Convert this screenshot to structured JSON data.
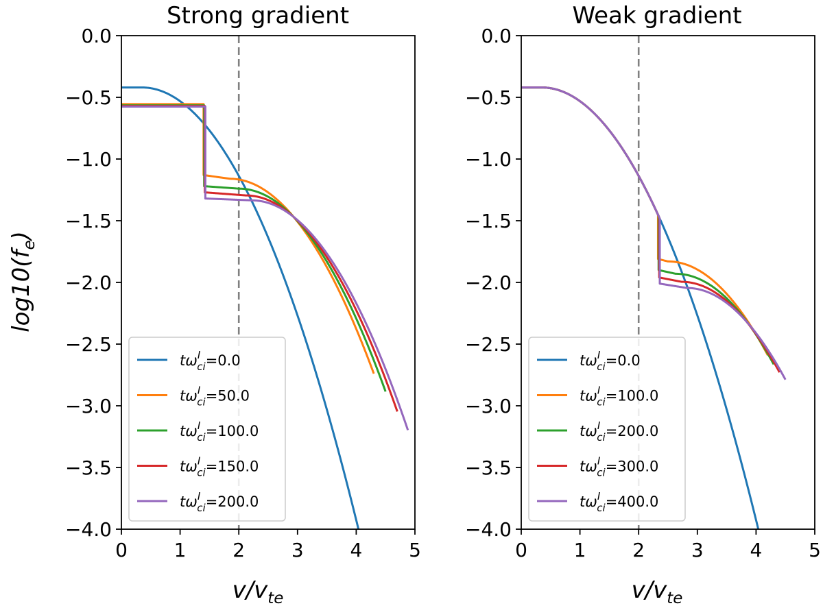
{
  "chart_data": [
    {
      "type": "line",
      "title": "Strong gradient",
      "xlabel_base": "v/v",
      "xlabel_sub": "te",
      "ylabel_text": "log10(f",
      "ylabel_sub": "e",
      "ylabel_close": ")",
      "xlim": [
        0,
        5
      ],
      "ylim": [
        -4.0,
        0.0
      ],
      "xticks": [
        "0",
        "1",
        "2",
        "3",
        "4",
        "5"
      ],
      "yticks": [
        "0.0",
        "−0.5",
        "−1.0",
        "−1.5",
        "−2.0",
        "−2.5",
        "−3.0",
        "−3.5",
        "−4.0"
      ],
      "vline_x": 2,
      "legend_prefix": "tω",
      "legend_sup": "I",
      "legend_sub": "ci",
      "legend_eq": "=",
      "series": [
        {
          "name": "0.0",
          "color": "#1f77b4",
          "plateau": -0.42,
          "jump_x": null,
          "step_low": null,
          "v0": 0.35,
          "drop_base": -0.42,
          "x_end": 4.08
        },
        {
          "name": "50.0",
          "color": "#ff7f0e",
          "plateau": -0.555,
          "jump_x": 1.4,
          "step_low": -1.13,
          "v0": 1.85,
          "drop_base": -1.16,
          "x_end": 4.3
        },
        {
          "name": "100.0",
          "color": "#2ca02c",
          "plateau": -0.565,
          "jump_x": 1.41,
          "step_low": -1.22,
          "v0": 2.0,
          "drop_base": -1.24,
          "x_end": 4.5
        },
        {
          "name": "150.0",
          "color": "#d62728",
          "plateau": -0.57,
          "jump_x": 1.42,
          "step_low": -1.27,
          "v0": 2.12,
          "drop_base": -1.295,
          "x_end": 4.7
        },
        {
          "name": "200.0",
          "color": "#9467bd",
          "plateau": -0.575,
          "jump_x": 1.43,
          "step_low": -1.32,
          "v0": 2.22,
          "drop_base": -1.335,
          "x_end": 4.88
        }
      ]
    },
    {
      "type": "line",
      "title": "Weak gradient",
      "xlabel_base": "v/v",
      "xlabel_sub": "te",
      "xlim": [
        0,
        5
      ],
      "ylim": [
        -4.0,
        0.0
      ],
      "xticks": [
        "0",
        "1",
        "2",
        "3",
        "4",
        "5"
      ],
      "yticks": [
        "0.0",
        "−0.5",
        "−1.0",
        "−1.5",
        "−2.0",
        "−2.5",
        "−3.0",
        "−3.5",
        "−4.0"
      ],
      "vline_x": 2,
      "legend_prefix": "tω",
      "legend_sup": "I",
      "legend_sub": "ci",
      "legend_eq": "=",
      "series": [
        {
          "name": "0.0",
          "color": "#1f77b4",
          "plateau": -0.42,
          "jump_x": null,
          "step_low": null,
          "v0": 0.35,
          "drop_base": -0.42,
          "x_end": 4.08
        },
        {
          "name": "100.0",
          "color": "#ff7f0e",
          "plateau": -0.42,
          "jump_x": 2.33,
          "step_low": -1.81,
          "v0": 2.5,
          "drop_base": -1.83,
          "x_end": 4.2
        },
        {
          "name": "200.0",
          "color": "#2ca02c",
          "plateau": -0.42,
          "jump_x": 2.34,
          "step_low": -1.9,
          "v0": 2.63,
          "drop_base": -1.93,
          "x_end": 4.3
        },
        {
          "name": "300.0",
          "color": "#d62728",
          "plateau": -0.42,
          "jump_x": 2.35,
          "step_low": -1.96,
          "v0": 2.73,
          "drop_base": -1.995,
          "x_end": 4.4
        },
        {
          "name": "400.0",
          "color": "#9467bd",
          "plateau": -0.42,
          "jump_x": 2.36,
          "step_low": -2.01,
          "v0": 2.82,
          "drop_base": -2.045,
          "x_end": 4.5
        }
      ]
    }
  ]
}
